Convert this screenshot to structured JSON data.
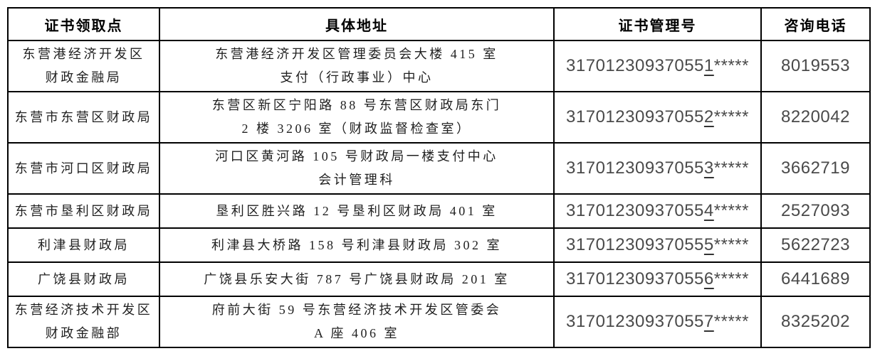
{
  "table": {
    "headers": [
      "证书领取点",
      "具体地址",
      "证书管理号",
      "咨询电话"
    ],
    "rows": [
      {
        "pickup_point": [
          "东营港经济开发区",
          "财政金融局"
        ],
        "address": [
          "东营港经济开发区管理委员会大楼 415 室",
          "支付（行政事业）中心"
        ],
        "cert_no": {
          "prefix": "31701230937055",
          "underlined_digit": "1",
          "masked": "*****"
        },
        "phone": "8019553"
      },
      {
        "pickup_point": "东营市东营区财政局",
        "address": [
          "东营区新区宁阳路 88 号东营区财政局东门",
          "2 楼 3206 室（财政监督检查室）"
        ],
        "cert_no": {
          "prefix": "31701230937055",
          "underlined_digit": "2",
          "masked": "*****"
        },
        "phone": "8220042"
      },
      {
        "pickup_point": "东营市河口区财政局",
        "address": [
          "河口区黄河路 105 号财政局一楼支付中心",
          "会计管理科"
        ],
        "cert_no": {
          "prefix": "31701230937055",
          "underlined_digit": "3",
          "masked": "*****"
        },
        "phone": "3662719"
      },
      {
        "pickup_point": "东营市垦利区财政局",
        "address": "垦利区胜兴路 12 号垦利区财政局 401 室",
        "cert_no": {
          "prefix": "31701230937055",
          "underlined_digit": "4",
          "masked": "*****"
        },
        "phone": "2527093"
      },
      {
        "pickup_point": "利津县财政局",
        "address": "利津县大桥路 158 号利津县财政局 302 室",
        "cert_no": {
          "prefix": "31701230937055",
          "underlined_digit": "5",
          "masked": "*****"
        },
        "phone": "5622723"
      },
      {
        "pickup_point": "广饶县财政局",
        "address": "广饶县乐安大街 787 号广饶县财政局 201 室",
        "cert_no": {
          "prefix": "31701230937055",
          "underlined_digit": "6",
          "masked": "*****"
        },
        "phone": "6441689"
      },
      {
        "pickup_point": [
          "东营经济技术开发区",
          "财政金融部"
        ],
        "address": [
          "府前大街 59 号东营经济技术开发区管委会",
          "A 座 406 室"
        ],
        "cert_no": {
          "prefix": "31701230937055",
          "underlined_digit": "7",
          "masked": "*****"
        },
        "phone": "8325202"
      }
    ],
    "colors": {
      "border": "#000000",
      "header_text": "#000000",
      "body_text": "#1f1f1f",
      "number_text": "#4a4a4a",
      "background": "#ffffff"
    }
  }
}
